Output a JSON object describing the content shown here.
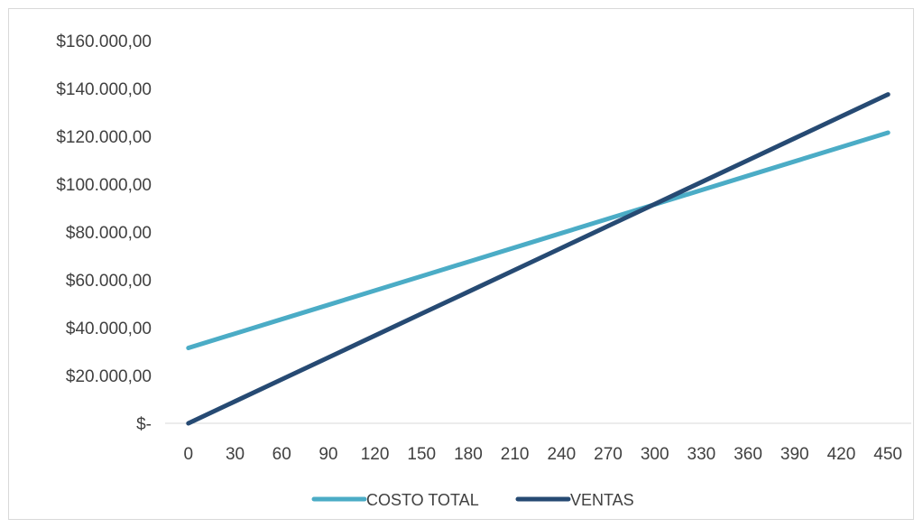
{
  "chart_data": {
    "type": "line",
    "title": "",
    "xlabel": "",
    "ylabel": "",
    "categories": [
      "0",
      "30",
      "60",
      "90",
      "120",
      "150",
      "180",
      "210",
      "240",
      "270",
      "300",
      "330",
      "360",
      "390",
      "420",
      "450"
    ],
    "ylim": [
      0,
      160000
    ],
    "y_ticks": [
      {
        "value": 0,
        "label": "$-"
      },
      {
        "value": 20000,
        "label": "$20.000,00"
      },
      {
        "value": 40000,
        "label": "$40.000,00"
      },
      {
        "value": 60000,
        "label": "$60.000,00"
      },
      {
        "value": 80000,
        "label": "$80.000,00"
      },
      {
        "value": 100000,
        "label": "$100.000,00"
      },
      {
        "value": 120000,
        "label": "$120.000,00"
      },
      {
        "value": 140000,
        "label": "$140.000,00"
      },
      {
        "value": 160000,
        "label": "$160.000,00"
      }
    ],
    "grid": false,
    "legend_position": "bottom",
    "series": [
      {
        "name": "COSTO TOTAL",
        "color": "#4bacc6",
        "values": [
          31500,
          37500,
          43500,
          49500,
          55500,
          61500,
          67500,
          73500,
          79500,
          85500,
          91500,
          97500,
          103500,
          109500,
          115500,
          121500
        ]
      },
      {
        "name": "VENTAS",
        "color": "#264a73",
        "values": [
          0,
          9167,
          18333,
          27500,
          36667,
          45833,
          55000,
          64167,
          73333,
          82500,
          91667,
          100833,
          110000,
          119167,
          128333,
          137500
        ]
      }
    ]
  }
}
